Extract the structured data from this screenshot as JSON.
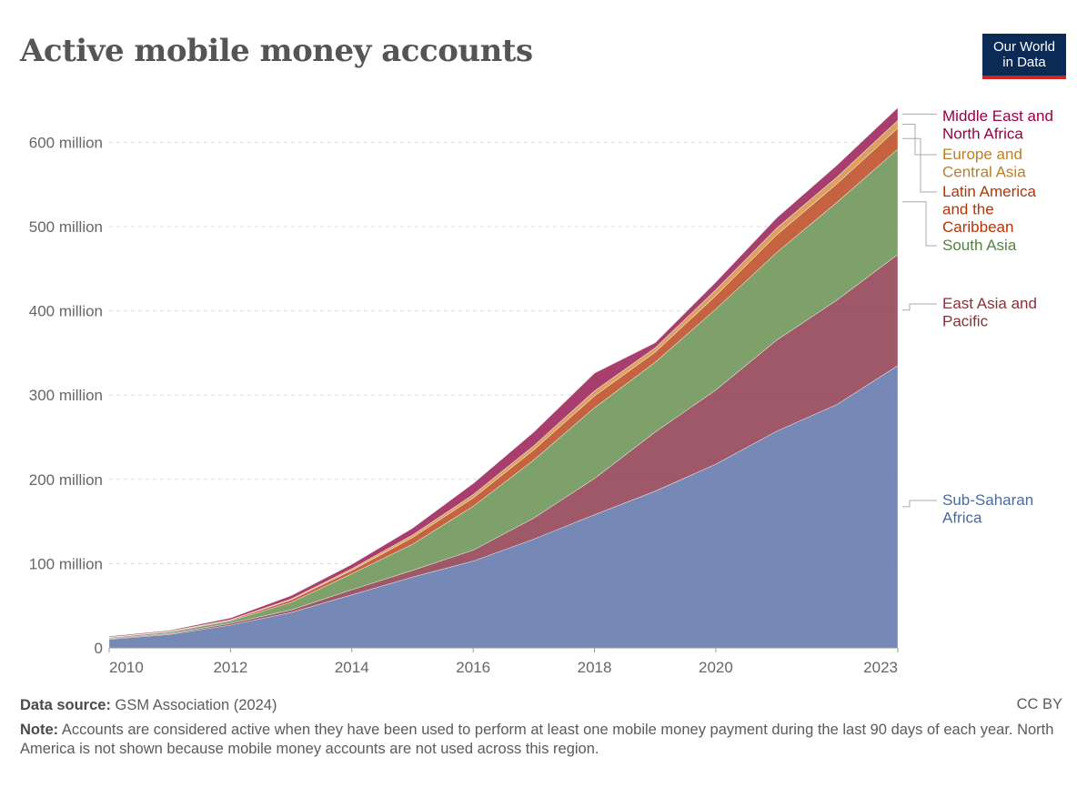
{
  "header": {
    "title": "Active mobile money accounts",
    "logo_line1": "Our World",
    "logo_line2": "in Data"
  },
  "footer": {
    "source_label": "Data source:",
    "source_text": "GSM Association (2024)",
    "license": "CC BY",
    "note_label": "Note:",
    "note_text": "Accounts are considered active when they have been used to perform at least one mobile money payment during the last 90 days of each year. North America is not shown because mobile money accounts are not used across this region."
  },
  "chart_data": {
    "type": "area",
    "stacked": true,
    "title": "Active mobile money accounts",
    "x": [
      2010,
      2011,
      2012,
      2013,
      2014,
      2015,
      2016,
      2017,
      2018,
      2019,
      2020,
      2021,
      2022,
      2023
    ],
    "x_ticks": [
      {
        "value": 2010,
        "label": "2010"
      },
      {
        "value": 2012,
        "label": "2012"
      },
      {
        "value": 2014,
        "label": "2014"
      },
      {
        "value": 2016,
        "label": "2016"
      },
      {
        "value": 2018,
        "label": "2018"
      },
      {
        "value": 2020,
        "label": "2020"
      },
      {
        "value": 2023,
        "label": "2023"
      }
    ],
    "y_ticks": [
      {
        "value": 0,
        "label": "0"
      },
      {
        "value": 100000000,
        "label": "100 million"
      },
      {
        "value": 200000000,
        "label": "200 million"
      },
      {
        "value": 300000000,
        "label": "300 million"
      },
      {
        "value": 400000000,
        "label": "400 million"
      },
      {
        "value": 500000000,
        "label": "500 million"
      },
      {
        "value": 600000000,
        "label": "600 million"
      }
    ],
    "xlim": [
      2010,
      2023
    ],
    "ylim": [
      0,
      640000000
    ],
    "grid": "horizontal dashed",
    "legend": "right",
    "series": [
      {
        "name": "Sub-Saharan Africa",
        "label_lines": [
          "Sub-Saharan",
          "Africa"
        ],
        "color": "#6a7eb0",
        "label_color": "#4c6a9c",
        "values": [
          10000000,
          16000000,
          27000000,
          42000000,
          63000000,
          84000000,
          103000000,
          129000000,
          158000000,
          186000000,
          218000000,
          257000000,
          289000000,
          335000000
        ]
      },
      {
        "name": "East Asia and Pacific",
        "label_lines": [
          "East Asia and",
          "Pacific"
        ],
        "color": "#974a5a",
        "label_color": "#883039",
        "values": [
          1000000,
          1000000,
          2000000,
          3000000,
          6000000,
          8000000,
          13000000,
          25000000,
          43000000,
          70000000,
          88000000,
          108000000,
          124000000,
          132000000
        ]
      },
      {
        "name": "South Asia",
        "label_lines": [
          "South Asia"
        ],
        "color": "#73995f",
        "label_color": "#578145",
        "values": [
          1000000,
          2000000,
          3000000,
          9000000,
          19000000,
          31000000,
          52000000,
          69000000,
          84000000,
          83000000,
          96000000,
          104000000,
          116000000,
          125000000
        ]
      },
      {
        "name": "Latin America and the Caribbean",
        "label_lines": [
          "Latin America",
          "and the",
          "Caribbean"
        ],
        "color": "#c05631",
        "label_color": "#b13507",
        "values": [
          500000,
          500000,
          1000000,
          3000000,
          4000000,
          8000000,
          10000000,
          12000000,
          14000000,
          12000000,
          16000000,
          21000000,
          22000000,
          25000000
        ]
      },
      {
        "name": "Europe and Central Asia",
        "label_lines": [
          "Europe and",
          "Central Asia"
        ],
        "color": "#d99a4f",
        "label_color": "#b8802b",
        "values": [
          200000,
          300000,
          500000,
          1000000,
          2000000,
          3000000,
          4000000,
          5000000,
          6000000,
          5000000,
          7000000,
          8000000,
          8000000,
          9000000
        ]
      },
      {
        "name": "Middle East and North Africa",
        "label_lines": [
          "Middle East and",
          "North Africa"
        ],
        "color": "#a02e62",
        "label_color": "#970046",
        "values": [
          1000000,
          1000000,
          2000000,
          4000000,
          5000000,
          8000000,
          13000000,
          16000000,
          21000000,
          6000000,
          9000000,
          12000000,
          14000000,
          15000000
        ]
      }
    ]
  }
}
